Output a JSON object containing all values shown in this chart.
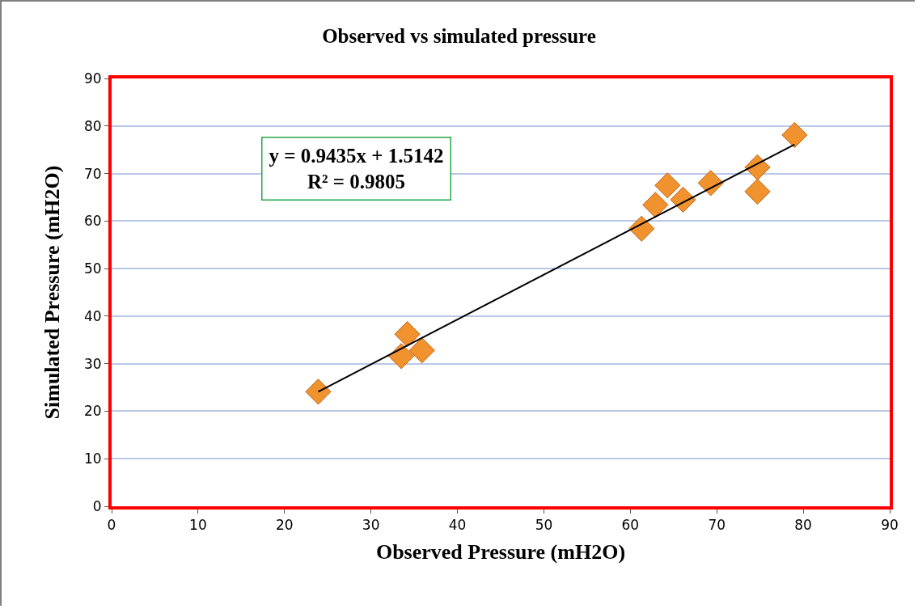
{
  "chart_data": {
    "type": "scatter",
    "title": "Observed vs simulated pressure",
    "xlabel": "Observed Pressure (mH2O)",
    "ylabel": "Simulated Pressure (mH2O)",
    "xlim": [
      0,
      90
    ],
    "xticks": [
      0,
      10,
      20,
      30,
      40,
      50,
      60,
      70,
      80,
      90
    ],
    "ylim": [
      0,
      90
    ],
    "yticks": [
      0,
      10,
      20,
      30,
      40,
      50,
      60,
      70,
      80,
      90
    ],
    "grid": "y",
    "marker": "diamond",
    "annotations": [
      "y = 0.9435x + 1.5142",
      "R² = 0.9805"
    ],
    "series": [
      {
        "color": "#f0922e",
        "x": [
          23.9,
          34.2,
          33.5,
          35.9,
          61.3,
          62.9,
          64.3,
          66.1,
          69.3,
          74.7,
          74.7,
          79.0
        ],
        "values": [
          24.1,
          36.2,
          31.6,
          32.8,
          58.4,
          63.4,
          67.5,
          64.5,
          68.0,
          71.3,
          66.2,
          78.1
        ]
      },
      {
        "type": "line",
        "color": "#000000",
        "marker": "none",
        "line_style": "solid",
        "x": [
          23.9,
          79.0
        ],
        "values": [
          24.1,
          76.1
        ]
      }
    ]
  }
}
